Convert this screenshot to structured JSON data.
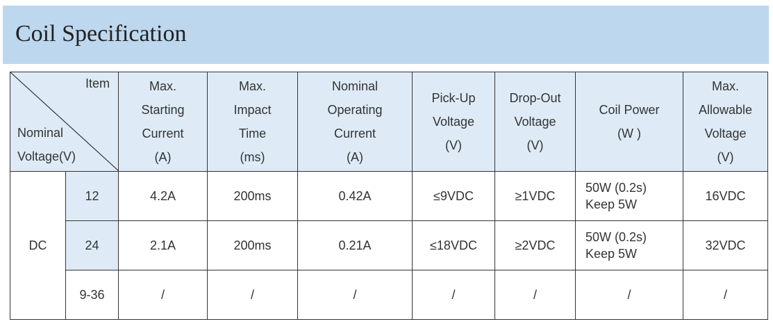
{
  "header": {
    "title": "Coil Specification"
  },
  "table": {
    "corner": {
      "top": "Item",
      "bottom": [
        "Nominal",
        "Voltage(V)"
      ]
    },
    "columns": [
      [
        "Max.",
        "Starting",
        "Current",
        "(A)"
      ],
      [
        "Max.",
        "Impact",
        "Time",
        "(ms)"
      ],
      [
        "Nominal",
        "Operating",
        "Current",
        "(A)"
      ],
      [
        "Pick-Up",
        "Voltage",
        "(V)"
      ],
      [
        "Drop-Out",
        "Voltage",
        "(V)"
      ],
      [
        "Coil Power",
        "(W )"
      ],
      [
        "Max.",
        "Allowable",
        "Voltage",
        "(V)"
      ]
    ],
    "group": "DC",
    "rows": [
      {
        "voltage": "12",
        "cells": [
          "4.2A",
          "200ms",
          "0.42A",
          "≤9VDC",
          "≥1VDC",
          [
            "50W (0.2s)",
            "Keep  5W"
          ],
          "16VDC"
        ]
      },
      {
        "voltage": "24",
        "cells": [
          "2.1A",
          "200ms",
          "0.21A",
          "≤18VDC",
          "≥2VDC",
          [
            "50W (0.2s)",
            "Keep  5W"
          ],
          "32VDC"
        ]
      },
      {
        "voltage": "9-36",
        "cells": [
          "/",
          "/",
          "/",
          "/",
          "/",
          "/",
          "/"
        ]
      }
    ]
  }
}
